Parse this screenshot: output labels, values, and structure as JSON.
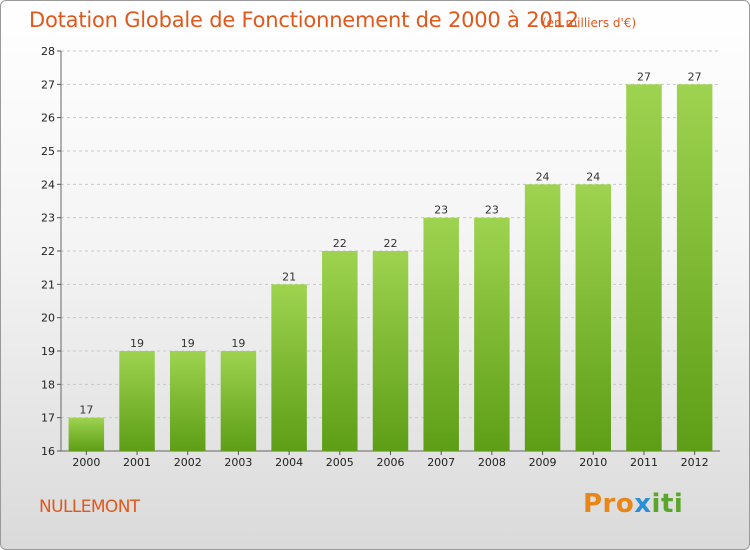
{
  "header": {
    "title": "Dotation Globale de Fonctionnement de 2000 à 2012",
    "subtitle": "(en milliers d'€)"
  },
  "footer": {
    "city": "NULLEMONT",
    "logo_parts": [
      "Pro",
      "x",
      "iti"
    ]
  },
  "colors": {
    "bar_top": "#9ed350",
    "bar_bottom": "#5e9e16",
    "accent": "#e0581b",
    "grid": "#c8c8c8"
  },
  "chart_data": {
    "type": "bar",
    "title": "Dotation Globale de Fonctionnement de 2000 à 2012",
    "subtitle": "(en milliers d'€)",
    "categories": [
      "2000",
      "2001",
      "2002",
      "2003",
      "2004",
      "2005",
      "2006",
      "2007",
      "2008",
      "2009",
      "2010",
      "2011",
      "2012"
    ],
    "values": [
      17,
      19,
      19,
      19,
      21,
      22,
      22,
      23,
      23,
      24,
      24,
      27,
      27
    ],
    "ylim": [
      16,
      28
    ],
    "yticks": [
      16,
      17,
      18,
      19,
      20,
      21,
      22,
      23,
      24,
      25,
      26,
      27,
      28
    ],
    "grid": "horizontal-dashed",
    "data_labels": true
  }
}
